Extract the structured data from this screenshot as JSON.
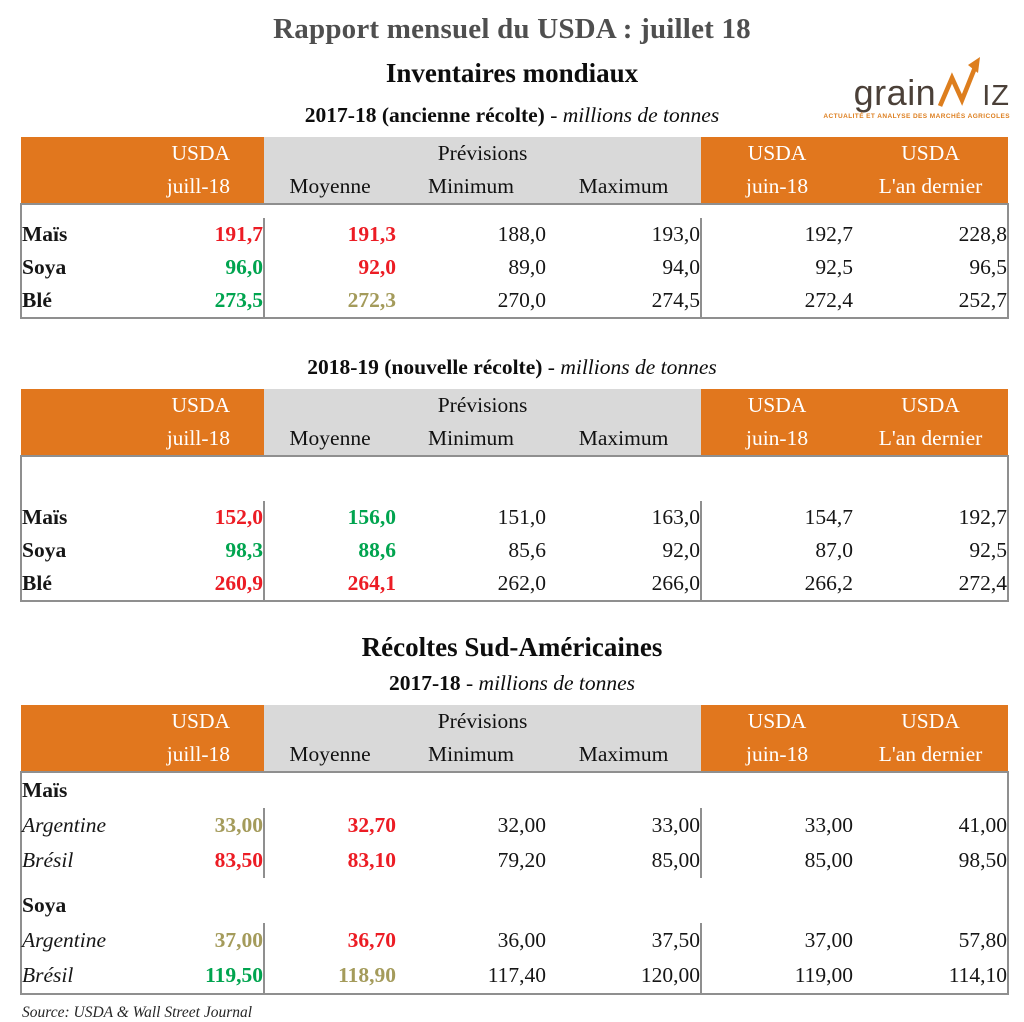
{
  "page": {
    "title": "Rapport mensuel du USDA : juillet 18",
    "inventories_title": "Inventaires mondiaux",
    "south_america_title": "Récoltes Sud-Américaines",
    "source": "Source: USDA & Wall Street Journal"
  },
  "logo": {
    "text_left": "grain",
    "text_right": "IZ",
    "tagline": "ACTUALITÉ ET ANALYSE DES MARCHÉS AGRICOLES",
    "accent_color": "#DD7E1E",
    "text_color": "#4B4038"
  },
  "colors": {
    "header_orange": "#E1771E",
    "header_gray": "#D9D9D9",
    "value_red": "#EC1C24",
    "value_green": "#00A44F",
    "value_olive": "#A49B5B"
  },
  "header_labels": {
    "usda": "USDA",
    "juill": "juill-18",
    "previsions": "Prévisions",
    "moyenne": "Moyenne",
    "minimum": "Minimum",
    "maximum": "Maximum",
    "juin": "juin-18",
    "lan_dernier": "L'an dernier"
  },
  "tables": [
    {
      "title": "2017-18 (ancienne récolte)",
      "title_suffix": "- millions de tonnes",
      "rows": [
        {
          "type": "spacer",
          "h": 13
        },
        {
          "type": "data",
          "label": "Maïs",
          "cells": [
            {
              "v": "191,7",
              "c": "red"
            },
            {
              "v": "191,3",
              "c": "red"
            },
            {
              "v": "188,0",
              "c": "black"
            },
            {
              "v": "193,0",
              "c": "black"
            },
            {
              "v": "192,7",
              "c": "black"
            },
            {
              "v": "228,8",
              "c": "black"
            }
          ]
        },
        {
          "type": "data",
          "label": "Soya",
          "cells": [
            {
              "v": "96,0",
              "c": "green"
            },
            {
              "v": "92,0",
              "c": "red"
            },
            {
              "v": "89,0",
              "c": "black"
            },
            {
              "v": "94,0",
              "c": "black"
            },
            {
              "v": "92,5",
              "c": "black"
            },
            {
              "v": "96,5",
              "c": "black"
            }
          ]
        },
        {
          "type": "data",
          "label": "Blé",
          "cells": [
            {
              "v": "273,5",
              "c": "green"
            },
            {
              "v": "272,3",
              "c": "olive"
            },
            {
              "v": "270,0",
              "c": "black"
            },
            {
              "v": "274,5",
              "c": "black"
            },
            {
              "v": "272,4",
              "c": "black"
            },
            {
              "v": "252,7",
              "c": "black"
            }
          ]
        }
      ]
    },
    {
      "title": "2018-19 (nouvelle récolte)",
      "title_suffix": "- millions de tonnes",
      "rows": [
        {
          "type": "spacer",
          "h": 44
        },
        {
          "type": "data",
          "label": "Maïs",
          "cells": [
            {
              "v": "152,0",
              "c": "red"
            },
            {
              "v": "156,0",
              "c": "green"
            },
            {
              "v": "151,0",
              "c": "black"
            },
            {
              "v": "163,0",
              "c": "black"
            },
            {
              "v": "154,7",
              "c": "black"
            },
            {
              "v": "192,7",
              "c": "black"
            }
          ]
        },
        {
          "type": "data",
          "label": "Soya",
          "cells": [
            {
              "v": "98,3",
              "c": "green"
            },
            {
              "v": "88,6",
              "c": "green"
            },
            {
              "v": "85,6",
              "c": "black"
            },
            {
              "v": "92,0",
              "c": "black"
            },
            {
              "v": "87,0",
              "c": "black"
            },
            {
              "v": "92,5",
              "c": "black"
            }
          ]
        },
        {
          "type": "data",
          "label": "Blé",
          "cells": [
            {
              "v": "260,9",
              "c": "red"
            },
            {
              "v": "264,1",
              "c": "red"
            },
            {
              "v": "262,0",
              "c": "black"
            },
            {
              "v": "266,0",
              "c": "black"
            },
            {
              "v": "266,2",
              "c": "black"
            },
            {
              "v": "272,4",
              "c": "black"
            }
          ]
        }
      ]
    },
    {
      "title": "2017-18",
      "title_suffix": "- millions de tonnes",
      "rows": [
        {
          "type": "group",
          "label": "Maïs"
        },
        {
          "type": "data",
          "label": "Argentine",
          "italic": true,
          "cells": [
            {
              "v": "33,00",
              "c": "olive"
            },
            {
              "v": "32,70",
              "c": "red"
            },
            {
              "v": "32,00",
              "c": "black"
            },
            {
              "v": "33,00",
              "c": "black"
            },
            {
              "v": "33,00",
              "c": "black"
            },
            {
              "v": "41,00",
              "c": "black"
            }
          ]
        },
        {
          "type": "data",
          "label": "Brésil",
          "italic": true,
          "cells": [
            {
              "v": "83,50",
              "c": "red"
            },
            {
              "v": "83,10",
              "c": "red"
            },
            {
              "v": "79,20",
              "c": "black"
            },
            {
              "v": "85,00",
              "c": "black"
            },
            {
              "v": "85,00",
              "c": "black"
            },
            {
              "v": "98,50",
              "c": "black"
            }
          ]
        },
        {
          "type": "spacer",
          "h": 10
        },
        {
          "type": "group",
          "label": "Soya"
        },
        {
          "type": "data",
          "label": "Argentine",
          "italic": true,
          "cells": [
            {
              "v": "37,00",
              "c": "olive"
            },
            {
              "v": "36,70",
              "c": "red"
            },
            {
              "v": "36,00",
              "c": "black"
            },
            {
              "v": "37,50",
              "c": "black"
            },
            {
              "v": "37,00",
              "c": "black"
            },
            {
              "v": "57,80",
              "c": "black"
            }
          ]
        },
        {
          "type": "data",
          "label": "Brésil",
          "italic": true,
          "cells": [
            {
              "v": "119,50",
              "c": "green"
            },
            {
              "v": "118,90",
              "c": "olive"
            },
            {
              "v": "117,40",
              "c": "black"
            },
            {
              "v": "120,00",
              "c": "black"
            },
            {
              "v": "119,00",
              "c": "black"
            },
            {
              "v": "114,10",
              "c": "black"
            }
          ]
        }
      ]
    }
  ]
}
